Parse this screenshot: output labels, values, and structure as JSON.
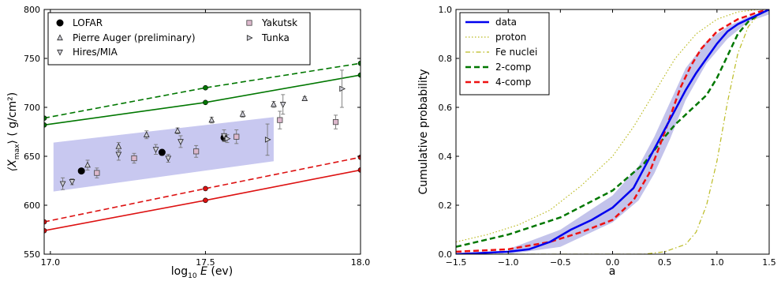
{
  "chart_data": [
    {
      "type": "scatter",
      "xlabel_prefix": "log",
      "xlabel_sub": "10",
      "xlabel_var": "E",
      "xlabel_unit": "(ev)",
      "ylabel_var": "⟨X",
      "ylabel_sub": "max",
      "ylabel_close": "⟩",
      "ylabel_unit": "( g/cm²)",
      "xlim": [
        16.98,
        18.0
      ],
      "ylim": [
        550,
        800
      ],
      "xticks": [
        {
          "v": 17.0,
          "label": "17.0"
        },
        {
          "v": 17.5,
          "label": "17.5"
        },
        {
          "v": 18.0,
          "label": "18.0"
        }
      ],
      "yticks": [
        550,
        600,
        650,
        700,
        750,
        800
      ],
      "grid": false,
      "legend_position": "top-left",
      "band": {
        "color": "#c8c8f0",
        "upper": [
          [
            17.01,
            664
          ],
          [
            17.72,
            690
          ]
        ],
        "lower": [
          [
            17.01,
            614
          ],
          [
            17.72,
            645
          ]
        ]
      },
      "lines": [
        {
          "color": "#007700",
          "style": "dashed",
          "x": [
            16.98,
            17.5,
            18.0
          ],
          "y": [
            689,
            720,
            745
          ]
        },
        {
          "color": "#007700",
          "style": "solid",
          "x": [
            16.98,
            17.5,
            18.0
          ],
          "y": [
            682,
            705,
            733
          ]
        },
        {
          "color": "#dd1111",
          "style": "dashed",
          "x": [
            16.98,
            17.5,
            18.0
          ],
          "y": [
            583,
            617,
            649
          ]
        },
        {
          "color": "#dd1111",
          "style": "solid",
          "x": [
            16.98,
            17.5,
            18.0
          ],
          "y": [
            574,
            605,
            636
          ]
        }
      ],
      "series": [
        {
          "name": "LOFAR",
          "marker": "circle",
          "points": [
            {
              "x": 17.1,
              "y": 635,
              "e": 2
            },
            {
              "x": 17.36,
              "y": 654,
              "e": 3
            },
            {
              "x": 17.56,
              "y": 669,
              "e": 3
            }
          ]
        },
        {
          "name": "Pierre Auger (preliminary)",
          "marker": "triangle-up",
          "points": [
            {
              "x": 17.12,
              "y": 641,
              "e": 5
            },
            {
              "x": 17.22,
              "y": 660,
              "e": 4
            },
            {
              "x": 17.31,
              "y": 672,
              "e": 4
            },
            {
              "x": 17.41,
              "y": 676,
              "e": 3
            },
            {
              "x": 17.52,
              "y": 687,
              "e": 3
            },
            {
              "x": 17.62,
              "y": 693,
              "e": 3
            },
            {
              "x": 17.72,
              "y": 703,
              "e": 3
            },
            {
              "x": 17.82,
              "y": 709,
              "e": 2
            }
          ]
        },
        {
          "name": "Hires/MIA",
          "marker": "triangle-down",
          "points": [
            {
              "x": 17.04,
              "y": 622,
              "e": 6
            },
            {
              "x": 17.07,
              "y": 624,
              "e": 3
            },
            {
              "x": 17.22,
              "y": 652,
              "e": 6
            },
            {
              "x": 17.34,
              "y": 657,
              "e": 5
            },
            {
              "x": 17.38,
              "y": 648,
              "e": 4
            },
            {
              "x": 17.42,
              "y": 665,
              "e": 6
            },
            {
              "x": 17.56,
              "y": 671,
              "e": 6
            },
            {
              "x": 17.75,
              "y": 703,
              "e": 10
            }
          ]
        },
        {
          "name": "Yakutsk",
          "marker": "square",
          "points": [
            {
              "x": 17.15,
              "y": 633,
              "e": 5
            },
            {
              "x": 17.27,
              "y": 648,
              "e": 5
            },
            {
              "x": 17.47,
              "y": 655,
              "e": 6
            },
            {
              "x": 17.6,
              "y": 670,
              "e": 7
            },
            {
              "x": 17.74,
              "y": 687,
              "e": 9
            },
            {
              "x": 17.92,
              "y": 685,
              "e": 7
            }
          ]
        },
        {
          "name": "Tunka",
          "marker": "triangle-right",
          "points": [
            {
              "x": 17.57,
              "y": 668,
              "e": 4
            },
            {
              "x": 17.7,
              "y": 667,
              "e": 16
            },
            {
              "x": 17.94,
              "y": 719,
              "e": 19
            }
          ]
        }
      ]
    },
    {
      "type": "line",
      "xlabel": "a",
      "ylabel": "Cumulative probability",
      "xlim": [
        -1.5,
        1.5
      ],
      "ylim": [
        0.0,
        1.0
      ],
      "xticks": [
        {
          "v": -1.5,
          "label": "−1.5"
        },
        {
          "v": -1.0,
          "label": "−1.0"
        },
        {
          "v": -0.5,
          "label": "−0.5"
        },
        {
          "v": 0.0,
          "label": "0.0"
        },
        {
          "v": 0.5,
          "label": "0.5"
        },
        {
          "v": 1.0,
          "label": "1.0"
        },
        {
          "v": 1.5,
          "label": "1.5"
        }
      ],
      "yticks": [
        {
          "v": 0.0,
          "label": "0.0"
        },
        {
          "v": 0.2,
          "label": "0.2"
        },
        {
          "v": 0.4,
          "label": "0.4"
        },
        {
          "v": 0.6,
          "label": "0.6"
        },
        {
          "v": 0.8,
          "label": "0.8"
        },
        {
          "v": 1.0,
          "label": "1.0"
        }
      ],
      "grid": false,
      "legend_position": "top-left",
      "band": {
        "color": "#b8b8e8",
        "upper": [
          [
            -1.0,
            0.02
          ],
          [
            -0.5,
            0.1
          ],
          [
            0.0,
            0.24
          ],
          [
            0.25,
            0.36
          ],
          [
            0.4,
            0.48
          ],
          [
            0.55,
            0.62
          ],
          [
            0.7,
            0.76
          ],
          [
            0.9,
            0.87
          ],
          [
            1.1,
            0.93
          ],
          [
            1.3,
            0.97
          ],
          [
            1.5,
            1.0
          ]
        ],
        "lower": [
          [
            -1.0,
            0.0
          ],
          [
            -0.5,
            0.03
          ],
          [
            0.0,
            0.13
          ],
          [
            0.25,
            0.22
          ],
          [
            0.4,
            0.33
          ],
          [
            0.55,
            0.47
          ],
          [
            0.7,
            0.63
          ],
          [
            0.9,
            0.78
          ],
          [
            1.1,
            0.88
          ],
          [
            1.3,
            0.95
          ],
          [
            1.5,
            0.98
          ]
        ]
      },
      "series": [
        {
          "name": "data",
          "color": "#0000ee",
          "style": "solid",
          "width": 2.5,
          "x": [
            -1.5,
            -1.0,
            -0.8,
            -0.6,
            -0.4,
            -0.2,
            0.0,
            0.2,
            0.35,
            0.5,
            0.6,
            0.7,
            0.8,
            0.9,
            1.0,
            1.1,
            1.2,
            1.3,
            1.4,
            1.5
          ],
          "y": [
            0.0,
            0.01,
            0.02,
            0.05,
            0.1,
            0.14,
            0.19,
            0.27,
            0.39,
            0.51,
            0.59,
            0.67,
            0.74,
            0.8,
            0.86,
            0.91,
            0.94,
            0.96,
            0.98,
            1.0
          ]
        },
        {
          "name": "proton",
          "color": "#bbbb22",
          "style": "dotted",
          "width": 1.2,
          "x": [
            -1.5,
            -1.2,
            -0.9,
            -0.6,
            -0.3,
            0.0,
            0.2,
            0.4,
            0.6,
            0.8,
            1.0,
            1.2,
            1.4,
            1.5
          ],
          "y": [
            0.05,
            0.08,
            0.12,
            0.18,
            0.28,
            0.4,
            0.52,
            0.66,
            0.8,
            0.9,
            0.96,
            0.99,
            1.0,
            1.0
          ]
        },
        {
          "name": "Fe nuclei",
          "color": "#bbbb22",
          "style": "dashdot",
          "width": 1.2,
          "x": [
            -1.5,
            0.3,
            0.5,
            0.7,
            0.8,
            0.9,
            1.0,
            1.1,
            1.2,
            1.3,
            1.4,
            1.5
          ],
          "y": [
            0.0,
            0.0,
            0.01,
            0.04,
            0.09,
            0.2,
            0.38,
            0.62,
            0.82,
            0.93,
            0.98,
            1.0
          ]
        },
        {
          "name": "2-comp",
          "color": "#007700",
          "style": "dashed",
          "width": 2.5,
          "x": [
            -1.5,
            -1.0,
            -0.5,
            0.0,
            0.3,
            0.5,
            0.6,
            0.7,
            0.8,
            0.9,
            1.0,
            1.1,
            1.2,
            1.3,
            1.4,
            1.5
          ],
          "y": [
            0.03,
            0.08,
            0.15,
            0.26,
            0.37,
            0.48,
            0.53,
            0.57,
            0.61,
            0.65,
            0.72,
            0.81,
            0.9,
            0.95,
            0.98,
            1.0
          ]
        },
        {
          "name": "4-comp",
          "color": "#ee1111",
          "style": "dashed",
          "width": 2.5,
          "x": [
            -1.5,
            -1.0,
            -0.6,
            -0.3,
            0.0,
            0.2,
            0.35,
            0.45,
            0.55,
            0.65,
            0.75,
            0.85,
            1.0,
            1.2,
            1.4,
            1.5
          ],
          "y": [
            0.01,
            0.02,
            0.05,
            0.09,
            0.14,
            0.22,
            0.33,
            0.44,
            0.56,
            0.68,
            0.77,
            0.84,
            0.91,
            0.96,
            0.99,
            1.0
          ]
        }
      ]
    }
  ]
}
